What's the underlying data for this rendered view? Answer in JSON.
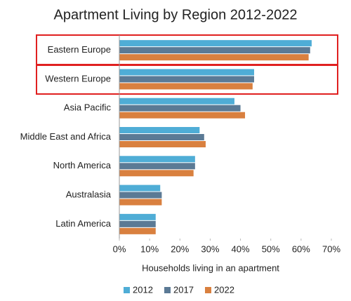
{
  "chart_data": {
    "type": "hbar",
    "title": "Apartment Living by Region 2012-2022",
    "xlabel": "Households living in an apartment",
    "categories": [
      "Eastern Europe",
      "Western Europe",
      "Asia Pacific",
      "Middle East and Africa",
      "North America",
      "Australasia",
      "Latin America"
    ],
    "series": [
      {
        "name": "2012",
        "color": "#4fadd6",
        "values": [
          63.5,
          44.5,
          38,
          26.5,
          25,
          13.5,
          12
        ]
      },
      {
        "name": "2017",
        "color": "#5b7a95",
        "values": [
          63,
          44.5,
          40,
          28,
          25,
          14,
          12
        ]
      },
      {
        "name": "2022",
        "color": "#d9803f",
        "values": [
          62.5,
          44,
          41.5,
          28.5,
          24.5,
          14,
          12
        ]
      }
    ],
    "xlim": [
      0,
      70
    ],
    "xticks": [
      {
        "value": 0,
        "label": "0%"
      },
      {
        "value": 10,
        "label": "10%"
      },
      {
        "value": 20,
        "label": "20%"
      },
      {
        "value": 30,
        "label": "30%"
      },
      {
        "value": 40,
        "label": "40%"
      },
      {
        "value": 50,
        "label": "50%"
      },
      {
        "value": 60,
        "label": "60%"
      },
      {
        "value": 70,
        "label": "70%"
      }
    ],
    "legend": "bottom"
  }
}
